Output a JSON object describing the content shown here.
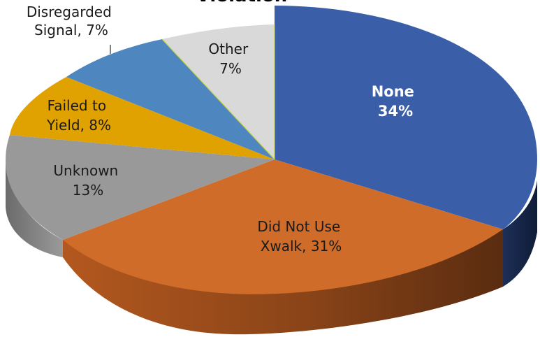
{
  "chart_data": {
    "type": "pie",
    "title": "Violation",
    "categories": [
      "None",
      "Did Not Use Xwalk",
      "Unknown",
      "Failed to Yield",
      "Disregarded Signal",
      "Other"
    ],
    "values": [
      34,
      31,
      13,
      8,
      7,
      7
    ],
    "labels": {
      "none": [
        "None",
        "34%"
      ],
      "xwalk": [
        "Did Not Use",
        "Xwalk, 31%"
      ],
      "unknown": [
        "Unknown",
        "13%"
      ],
      "failed": [
        "Failed to",
        "Yield, 8%"
      ],
      "disregarded": [
        "Disregarded",
        "Signal, 7%"
      ],
      "other": [
        "Other",
        "7%"
      ]
    },
    "colors": [
      "#3a5fa8",
      "#d06c2a",
      "#999999",
      "#e0a200",
      "#4e87c0",
      "#d9d9d9"
    ],
    "style": "3d-pie"
  }
}
